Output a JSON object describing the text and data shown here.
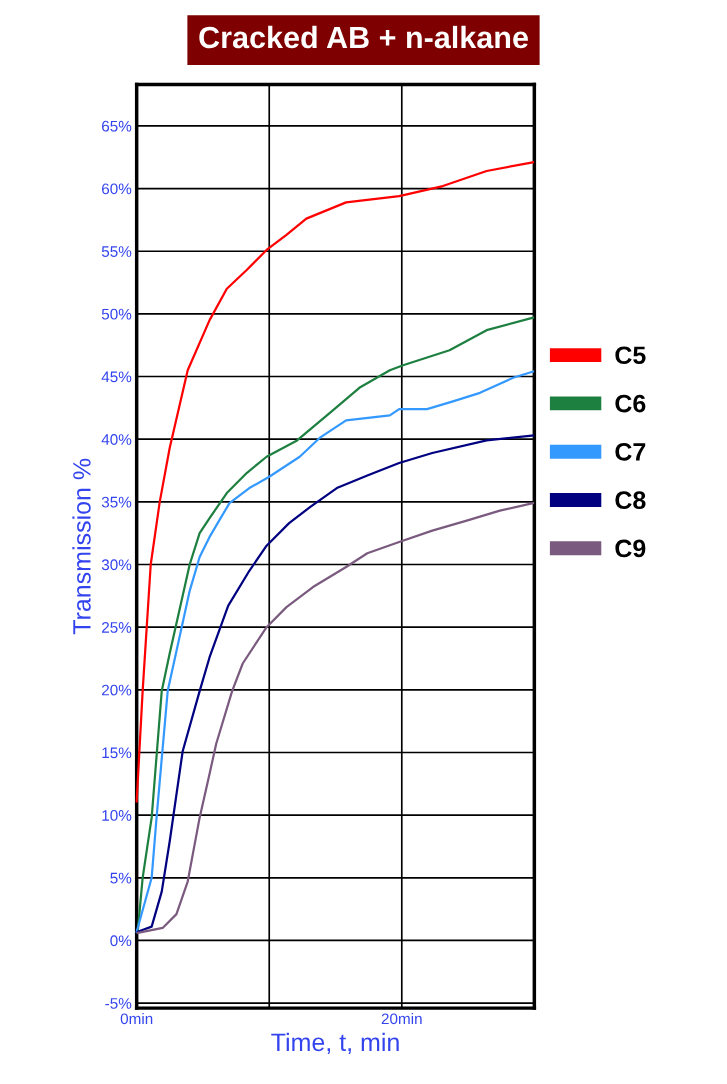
{
  "chart_data": {
    "type": "line",
    "title": "Cracked AB + n-alkane",
    "xlabel": "Time, t, min",
    "ylabel": "Transmission %",
    "xlim": [
      0,
      30
    ],
    "xticks": [
      {
        "value": 0,
        "label": "0min"
      },
      {
        "value": 10,
        "label": null
      },
      {
        "value": 20,
        "label": "20min"
      },
      {
        "value": 30,
        "label": null
      }
    ],
    "ylim": [
      -5.4,
      68.3
    ],
    "yticks": [
      {
        "value": -5,
        "label": "-5%"
      },
      {
        "value": 0,
        "label": "0%"
      },
      {
        "value": 5,
        "label": "5%"
      },
      {
        "value": 10,
        "label": "10%"
      },
      {
        "value": 15,
        "label": "15%"
      },
      {
        "value": 20,
        "label": "20%"
      },
      {
        "value": 25,
        "label": "25%"
      },
      {
        "value": 30,
        "label": "30%"
      },
      {
        "value": 35,
        "label": "35%"
      },
      {
        "value": 40,
        "label": "40%"
      },
      {
        "value": 45,
        "label": "45%"
      },
      {
        "value": 50,
        "label": "50%"
      },
      {
        "value": 55,
        "label": "55%"
      },
      {
        "value": 60,
        "label": "60%"
      },
      {
        "value": 65,
        "label": "65%"
      }
    ],
    "grid": true,
    "legend": "right",
    "marker": "none",
    "line_style": "solid",
    "series": [
      {
        "name": "C5",
        "color": "#ff0000",
        "x": [
          0,
          0.45,
          1.06,
          1.74,
          2.49,
          3.85,
          5.5,
          6.8,
          8.3,
          9.8,
          11.3,
          12.8,
          15.8,
          19.8,
          23.1,
          26.4,
          29.9
        ],
        "values": [
          11.1,
          19.9,
          30,
          35,
          39.3,
          45.5,
          49.5,
          52,
          53.5,
          55.1,
          56.3,
          57.6,
          58.9,
          59.4,
          60.2,
          61.4,
          62.1
        ]
      },
      {
        "name": "C6",
        "color": "#1e8040",
        "x": [
          0.08,
          0.45,
          1.13,
          1.89,
          2.49,
          4.0,
          4.75,
          5.5,
          6.8,
          8.3,
          9.8,
          12.1,
          14.8,
          16.8,
          19.1,
          20.1,
          23.6,
          26.4,
          29.9
        ],
        "values": [
          0.7,
          5,
          9.8,
          19.9,
          22.9,
          30,
          32.5,
          33.7,
          35.7,
          37.3,
          38.6,
          39.9,
          42.3,
          44.1,
          45.5,
          45.9,
          47.1,
          48.7,
          49.7
        ]
      },
      {
        "name": "C7",
        "color": "#3399ff",
        "x": [
          0,
          1.13,
          1.5,
          2.34,
          4.0,
          4.75,
          5.5,
          7.0,
          8.5,
          10.0,
          12.3,
          13.8,
          15.8,
          19.1,
          19.8,
          21.9,
          23.8,
          25.9,
          28.4,
          29.9
        ],
        "values": [
          0.7,
          5,
          9.8,
          19.9,
          27.9,
          30.6,
          32.2,
          34.9,
          36.1,
          37,
          38.6,
          40.1,
          41.5,
          41.9,
          42.4,
          42.4,
          43,
          43.7,
          44.9,
          45.4
        ]
      },
      {
        "name": "C8",
        "color": "#000080",
        "x": [
          0.08,
          1.13,
          1.89,
          2.49,
          3.47,
          4.75,
          5.5,
          6.9,
          8.5,
          9.8,
          11.5,
          13.1,
          15.1,
          17.4,
          19.8,
          22.3,
          26.4,
          29.9
        ],
        "values": [
          0.7,
          1.1,
          3.9,
          7.9,
          15.1,
          19.9,
          22.6,
          26.7,
          29.5,
          31.5,
          33.3,
          34.6,
          36.1,
          37.1,
          38.1,
          38.9,
          39.9,
          40.3
        ]
      },
      {
        "name": "C9",
        "color": "#7a5a7e",
        "x": [
          0.08,
          1.96,
          3.0,
          3.85,
          4.75,
          5.5,
          6.0,
          7.2,
          8.0,
          9.8,
          11.3,
          13.3,
          15.8,
          17.4,
          19.8,
          22.3,
          24.9,
          27.4,
          29.9
        ],
        "values": [
          0.6,
          1,
          2.1,
          4.7,
          9.8,
          13.3,
          15.7,
          19.9,
          22.1,
          25,
          26.6,
          28.2,
          29.8,
          30.9,
          31.8,
          32.7,
          33.5,
          34.3,
          34.9
        ]
      }
    ]
  }
}
